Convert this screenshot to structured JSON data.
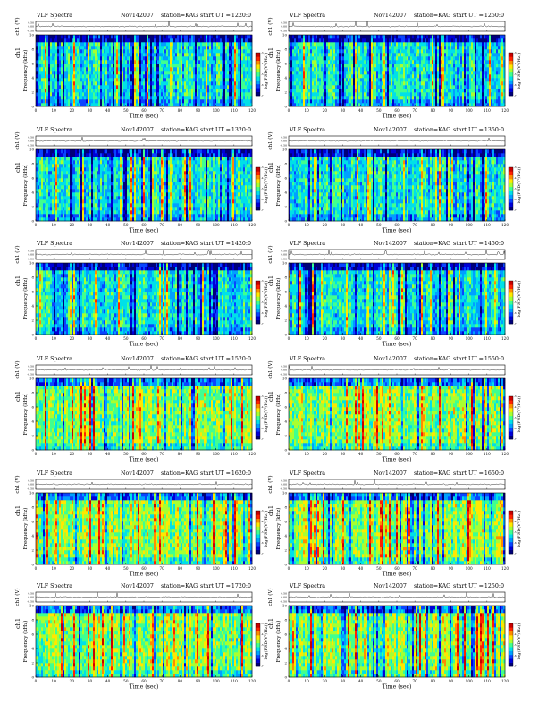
{
  "page": {
    "rows": 6,
    "cols": 2
  },
  "colors": {
    "colormap": [
      "#00007a",
      "#0000d8",
      "#0a44ff",
      "#00a0ff",
      "#00e0e8",
      "#40ff90",
      "#a8ff30",
      "#ffe800",
      "#ff8c00",
      "#ff2200",
      "#c80000"
    ],
    "trace": "#000000",
    "background": "#ffffff"
  },
  "common": {
    "title_prefix": "VLF Spectra",
    "date": "Nov142007",
    "station": "station=KAG",
    "start_label": "start  UT  =",
    "xlabel": "Time  (sec)",
    "ylabel_freq": "Frequency  (kHz)",
    "ylabel_channel": "ch1",
    "ylabel_trace": "ch1 (V)",
    "colorbar_label": "log(PSD(V²/Hz))",
    "xticks": [
      "0",
      "10",
      "20",
      "30",
      "40",
      "50",
      "60",
      "70",
      "80",
      "90",
      "100",
      "110",
      "120"
    ],
    "yticks_freq": [
      "0",
      "2",
      "4",
      "6",
      "8",
      "10"
    ],
    "yticks_trace": [
      "-0.50",
      "0.00",
      "0.50"
    ],
    "cbar_ticks": [
      "-3",
      "-4",
      "-5",
      "-6",
      "-7"
    ]
  },
  "chart_data": [
    {
      "type": "heatmap",
      "title": "VLF Spectra  Nov142007  station=KAG  start UT =1220:0",
      "start_ut": "1220:0",
      "xlim": [
        0,
        120
      ],
      "ylim": [
        0,
        10
      ],
      "trace_ylim": [
        -0.5,
        0.5
      ],
      "clim": [
        -7,
        -3
      ]
    },
    {
      "type": "heatmap",
      "title": "VLF Spectra  Nov142007  station=KAG  start UT =1250:0",
      "start_ut": "1250:0",
      "xlim": [
        0,
        120
      ],
      "ylim": [
        0,
        10
      ],
      "trace_ylim": [
        -0.5,
        0.5
      ],
      "clim": [
        -7,
        -3
      ]
    },
    {
      "type": "heatmap",
      "title": "VLF Spectra  Nov142007  station=KAG  start UT =1320:0",
      "start_ut": "1320:0",
      "xlim": [
        0,
        120
      ],
      "ylim": [
        0,
        10
      ],
      "trace_ylim": [
        -0.5,
        0.5
      ],
      "clim": [
        -7,
        -3
      ]
    },
    {
      "type": "heatmap",
      "title": "VLF Spectra  Nov142007  station=KAG  start UT =1350:0",
      "start_ut": "1350:0",
      "xlim": [
        0,
        120
      ],
      "ylim": [
        0,
        10
      ],
      "trace_ylim": [
        -0.5,
        0.5
      ],
      "clim": [
        -7,
        -3
      ]
    },
    {
      "type": "heatmap",
      "title": "VLF Spectra  Nov142007  station=KAG  start UT =1420:0",
      "start_ut": "1420:0",
      "xlim": [
        0,
        120
      ],
      "ylim": [
        0,
        10
      ],
      "trace_ylim": [
        -0.5,
        0.5
      ],
      "clim": [
        -7,
        -3
      ]
    },
    {
      "type": "heatmap",
      "title": "VLF Spectra  Nov142007  station=KAG  start UT =1450:0",
      "start_ut": "1450:0",
      "xlim": [
        0,
        120
      ],
      "ylim": [
        0,
        10
      ],
      "trace_ylim": [
        -0.5,
        0.5
      ],
      "clim": [
        -7,
        -3
      ]
    },
    {
      "type": "heatmap",
      "title": "VLF Spectra  Nov142007  station=KAG  start UT =1520:0",
      "start_ut": "1520:0",
      "xlim": [
        0,
        120
      ],
      "ylim": [
        0,
        10
      ],
      "trace_ylim": [
        -0.5,
        0.5
      ],
      "clim": [
        -7,
        -3
      ]
    },
    {
      "type": "heatmap",
      "title": "VLF Spectra  Nov142007  station=KAG  start UT =1550:0",
      "start_ut": "1550:0",
      "xlim": [
        0,
        120
      ],
      "ylim": [
        0,
        10
      ],
      "trace_ylim": [
        -0.5,
        0.5
      ],
      "clim": [
        -7,
        -3
      ]
    },
    {
      "type": "heatmap",
      "title": "VLF Spectra  Nov142007  station=KAG  start UT =1620:0",
      "start_ut": "1620:0",
      "xlim": [
        0,
        120
      ],
      "ylim": [
        0,
        10
      ],
      "trace_ylim": [
        -0.5,
        0.5
      ],
      "clim": [
        -7,
        -3
      ]
    },
    {
      "type": "heatmap",
      "title": "VLF Spectra  Nov142007  station=KAG  start UT =1650:0",
      "start_ut": "1650:0",
      "xlim": [
        0,
        120
      ],
      "ylim": [
        0,
        10
      ],
      "trace_ylim": [
        -0.5,
        0.5
      ],
      "clim": [
        -7,
        -3
      ]
    },
    {
      "type": "heatmap",
      "title": "VLF Spectra  Nov142007  station=KAG  start UT =1720:0",
      "start_ut": "1720:0",
      "xlim": [
        0,
        120
      ],
      "ylim": [
        0,
        10
      ],
      "trace_ylim": [
        -0.5,
        0.5
      ],
      "clim": [
        -7,
        -3
      ]
    },
    {
      "type": "heatmap",
      "title": "VLF Spectra  Nov142007  station=KAG  start UT =1250:0",
      "start_ut": "1250:0",
      "xlim": [
        0,
        120
      ],
      "ylim": [
        0,
        10
      ],
      "trace_ylim": [
        -0.5,
        0.5
      ],
      "clim": [
        -7,
        -3
      ]
    }
  ]
}
